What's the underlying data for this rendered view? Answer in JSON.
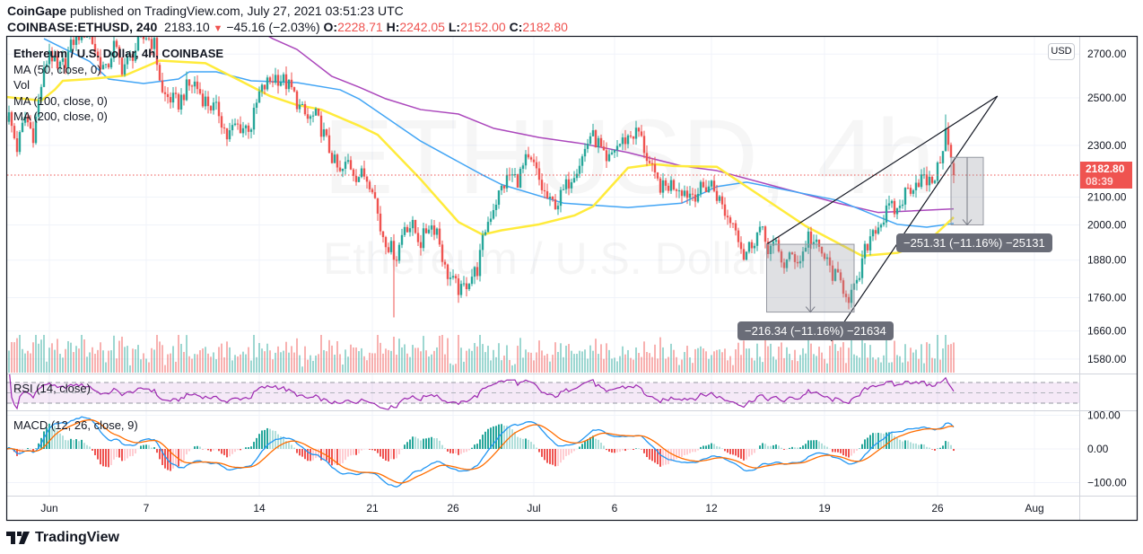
{
  "header": {
    "publisher": "CoinGape",
    "published_text": "published on TradingView.com, July 27, 2021 03:51:23 UTC",
    "symbol": "COINBASE:ETHUSD, 240",
    "last": "2183.10",
    "change": "−45.16 (−2.03%)",
    "direction": "down",
    "o_label": "O:",
    "o": "2228.71",
    "h_label": "H:",
    "h": "2242.05",
    "l_label": "L:",
    "l": "2152.00",
    "c_label": "C:",
    "c": "2182.80"
  },
  "legend": {
    "title": "Ethereum / U.S. Dollar, 4h, COINBASE",
    "ma50": "MA (50, close, 0)",
    "vol": "Vol",
    "ma100": "MA (100, close, 0)",
    "ma200": "MA (200, close, 0)"
  },
  "watermark": {
    "line1": "ETHUSD, 4h",
    "line2": "Ethereum / U.S. Dollar"
  },
  "indicators": {
    "rsi": "RSI (14, close)",
    "macd": "MACD (12, 26, close, 9)"
  },
  "price_axis": {
    "currency": "USD",
    "ticks": [
      "2700.00",
      "2500.00",
      "2300.00",
      "2100.00",
      "2000.00",
      "1880.00",
      "1760.00",
      "1660.00",
      "1580.00"
    ],
    "last_price": "2182.80",
    "countdown": "08:39"
  },
  "macd_axis": {
    "ticks": [
      "100.00",
      "0.00",
      "−100.00"
    ]
  },
  "time_axis": {
    "ticks": [
      "Jun",
      "7",
      "14",
      "21",
      "26",
      "Jul",
      "6",
      "12",
      "19",
      "26",
      "Aug"
    ]
  },
  "drawings": {
    "measure1": {
      "label": "−216.34 (−11.16%) −21634",
      "from": [
        "07-15 10:00",
        1933
      ],
      "to": [
        "07-20 20:00",
        1716
      ]
    },
    "measure2": {
      "label": "−251.31 (−11.16%) −25131",
      "from": [
        "07-26 20:00",
        2252
      ],
      "to": [
        "07-28 20:00",
        2000
      ]
    },
    "wedge_upper": [
      [
        "07-15 10:00",
        1933
      ],
      [
        "07-29 17:00",
        2508
      ]
    ],
    "wedge_lower": [
      [
        "07-19 10:00",
        1631
      ],
      [
        "07-29 17:00",
        2508
      ]
    ]
  },
  "colors": {
    "up": "#26a69a",
    "down": "#ef5350",
    "ma50": "#ffeb3b",
    "ma100": "#42a5f5",
    "ma200": "#ab47bc",
    "rsi": "#9c27b0",
    "macd": "#2196f3",
    "signal": "#ff6d00"
  },
  "brand": "TradingView",
  "chart_data": {
    "type": "candlestick",
    "scale": "log",
    "timeframe": "4h",
    "ylim": [
      1560,
      2800
    ],
    "last_candle": {
      "o": 2228.71,
      "h": 2242.05,
      "l": 2152.0,
      "c": 2182.8
    },
    "close_path": [
      [
        "05-29 12:00",
        2420
      ],
      [
        "05-30 00:00",
        2289
      ],
      [
        "05-30 12:00",
        2419
      ],
      [
        "05-31 00:00",
        2343
      ],
      [
        "05-31 12:00",
        2556
      ],
      [
        "06-01 00:00",
        2722
      ],
      [
        "06-01 12:00",
        2617
      ],
      [
        "06-02 00:00",
        2670
      ],
      [
        "06-02 12:00",
        2766
      ],
      [
        "06-03 00:00",
        2810
      ],
      [
        "06-03 12:00",
        2800
      ],
      [
        "06-04 00:00",
        2680
      ],
      [
        "06-04 12:00",
        2617
      ],
      [
        "06-05 00:00",
        2740
      ],
      [
        "06-05 12:00",
        2638
      ],
      [
        "06-06 00:00",
        2680
      ],
      [
        "06-06 12:00",
        2744
      ],
      [
        "06-07 00:00",
        2788
      ],
      [
        "06-07 12:00",
        2744
      ],
      [
        "06-08 00:00",
        2516
      ],
      [
        "06-08 12:00",
        2496
      ],
      [
        "06-09 00:00",
        2476
      ],
      [
        "06-09 12:00",
        2545
      ],
      [
        "06-10 00:00",
        2565
      ],
      [
        "06-10 12:00",
        2500
      ],
      [
        "06-11 00:00",
        2465
      ],
      [
        "06-11 12:00",
        2438
      ],
      [
        "06-12 00:00",
        2333
      ],
      [
        "06-12 12:00",
        2381
      ],
      [
        "06-13 00:00",
        2373
      ],
      [
        "06-13 12:00",
        2381
      ],
      [
        "06-14 00:00",
        2516
      ],
      [
        "06-14 12:00",
        2565
      ],
      [
        "06-15 00:00",
        2596
      ],
      [
        "06-15 12:00",
        2576
      ],
      [
        "06-16 00:00",
        2536
      ],
      [
        "06-16 12:00",
        2457
      ],
      [
        "06-17 00:00",
        2407
      ],
      [
        "06-17 12:00",
        2419
      ],
      [
        "06-18 00:00",
        2343
      ],
      [
        "06-18 12:00",
        2253
      ],
      [
        "06-19 00:00",
        2183
      ],
      [
        "06-19 12:00",
        2235
      ],
      [
        "06-20 00:00",
        2183
      ],
      [
        "06-20 12:00",
        2183
      ],
      [
        "06-21 00:00",
        2149
      ],
      [
        "06-21 12:00",
        1986
      ],
      [
        "06-22 00:00",
        1930
      ],
      [
        "06-22 12:00",
        1894
      ],
      [
        "06-23 00:00",
        2002
      ],
      [
        "06-23 12:00",
        1992
      ],
      [
        "06-24 00:00",
        1939
      ],
      [
        "06-24 12:00",
        2002
      ],
      [
        "06-25 00:00",
        1986
      ],
      [
        "06-25 12:00",
        1850
      ],
      [
        "06-26 00:00",
        1807
      ],
      [
        "06-26 12:00",
        1778
      ],
      [
        "06-27 00:00",
        1821
      ],
      [
        "06-27 12:00",
        1850
      ],
      [
        "06-28 00:00",
        1986
      ],
      [
        "06-28 12:00",
        2066
      ],
      [
        "06-29 00:00",
        2132
      ],
      [
        "06-29 12:00",
        2183
      ],
      [
        "06-30 00:00",
        2166
      ],
      [
        "06-30 12:00",
        2235
      ],
      [
        "07-01 00:00",
        2218
      ],
      [
        "07-01 12:00",
        2132
      ],
      [
        "07-02 00:00",
        2076
      ],
      [
        "07-02 12:00",
        2082
      ],
      [
        "07-03 00:00",
        2140
      ],
      [
        "07-03 12:00",
        2200
      ],
      [
        "07-04 00:00",
        2253
      ],
      [
        "07-04 12:00",
        2343
      ],
      [
        "07-05 00:00",
        2307
      ],
      [
        "07-05 12:00",
        2218
      ],
      [
        "07-06 00:00",
        2289
      ],
      [
        "07-06 12:00",
        2315
      ],
      [
        "07-07 00:00",
        2343
      ],
      [
        "07-07 12:00",
        2354
      ],
      [
        "07-08 00:00",
        2253
      ],
      [
        "07-08 12:00",
        2166
      ],
      [
        "07-09 00:00",
        2132
      ],
      [
        "07-09 12:00",
        2149
      ],
      [
        "07-10 00:00",
        2140
      ],
      [
        "07-10 12:00",
        2115
      ],
      [
        "07-11 00:00",
        2115
      ],
      [
        "07-11 12:00",
        2132
      ],
      [
        "07-12 00:00",
        2149
      ],
      [
        "07-12 12:00",
        2088
      ],
      [
        "07-13 00:00",
        2025
      ],
      [
        "07-13 12:00",
        2002
      ],
      [
        "07-14 00:00",
        1894
      ],
      [
        "07-14 12:00",
        1939
      ],
      [
        "07-15 00:00",
        1986
      ],
      [
        "07-15 12:00",
        1924
      ],
      [
        "07-16 00:00",
        1924
      ],
      [
        "07-16 12:00",
        1864
      ],
      [
        "07-17 00:00",
        1894
      ],
      [
        "07-17 12:00",
        1879
      ],
      [
        "07-18 00:00",
        1964
      ],
      [
        "07-18 12:00",
        1924
      ],
      [
        "07-19 00:00",
        1888
      ],
      [
        "07-19 12:00",
        1835
      ],
      [
        "07-20 00:00",
        1807
      ],
      [
        "07-20 12:00",
        1764
      ],
      [
        "07-21 00:00",
        1792
      ],
      [
        "07-21 12:00",
        1909
      ],
      [
        "07-22 00:00",
        1986
      ],
      [
        "07-22 12:00",
        2008
      ],
      [
        "07-23 00:00",
        2060
      ],
      [
        "07-23 12:00",
        2049
      ],
      [
        "07-24 00:00",
        2115
      ],
      [
        "07-24 12:00",
        2149
      ],
      [
        "07-25 00:00",
        2172
      ],
      [
        "07-25 12:00",
        2149
      ],
      [
        "07-26 00:00",
        2200
      ],
      [
        "07-26 12:00",
        2354
      ],
      [
        "07-27 00:00",
        2183
      ]
    ],
    "notable_wicks": [
      [
        "06-22 08:00",
        "low",
        1700
      ],
      [
        "07-26 12:00",
        "high",
        2428
      ]
    ],
    "ma50": [
      [
        "05-29 08:00",
        2504
      ],
      [
        "05-31 12:00",
        2488
      ],
      [
        "06-01 08:00",
        2536
      ],
      [
        "06-01 20:00",
        2576
      ],
      [
        "06-03 12:00",
        2584
      ],
      [
        "06-05 16:00",
        2600
      ],
      [
        "06-07 20:00",
        2669
      ],
      [
        "06-10 16:00",
        2657
      ],
      [
        "06-12 20:00",
        2576
      ],
      [
        "06-14 16:00",
        2508
      ],
      [
        "06-16 08:00",
        2469
      ],
      [
        "06-17 20:00",
        2449
      ],
      [
        "06-20 04:00",
        2381
      ],
      [
        "06-21 08:00",
        2343
      ],
      [
        "06-24 00:00",
        2166
      ],
      [
        "06-26 08:00",
        2010
      ],
      [
        "06-27 20:00",
        1966
      ],
      [
        "06-29 00:00",
        1981
      ],
      [
        "07-01 08:00",
        2002
      ],
      [
        "07-03 12:00",
        2033
      ],
      [
        "07-04 16:00",
        2066
      ],
      [
        "07-06 20:00",
        2211
      ],
      [
        "07-08 12:00",
        2225
      ],
      [
        "07-09 16:00",
        2218
      ],
      [
        "07-12 08:00",
        2215
      ],
      [
        "07-17 20:00",
        1996
      ],
      [
        "07-21 08:00",
        1894
      ],
      [
        "07-23 12:00",
        1904
      ],
      [
        "07-25 08:00",
        1939
      ],
      [
        "07-27 00:00",
        2027
      ]
    ],
    "ma100": [
      [
        "05-31 16:00",
        2774
      ],
      [
        "06-03 12:00",
        2665
      ],
      [
        "06-04 16:00",
        2584
      ],
      [
        "06-06 20:00",
        2564
      ],
      [
        "06-09 00:00",
        2584
      ],
      [
        "06-09 16:00",
        2617
      ],
      [
        "06-11 08:00",
        2617
      ],
      [
        "06-13 12:00",
        2576
      ],
      [
        "06-16 08:00",
        2568
      ],
      [
        "06-19 00:00",
        2536
      ],
      [
        "06-20 04:00",
        2496
      ],
      [
        "06-24 00:00",
        2317
      ],
      [
        "06-27 20:00",
        2183
      ],
      [
        "06-29 00:00",
        2147
      ],
      [
        "07-02 20:00",
        2078
      ],
      [
        "07-06 20:00",
        2062
      ],
      [
        "07-10 04:00",
        2078
      ],
      [
        "07-12 08:00",
        2139
      ],
      [
        "07-14 04:00",
        2156
      ],
      [
        "07-19 20:00",
        2088
      ],
      [
        "07-23 12:00",
        2002
      ],
      [
        "07-25 08:00",
        1992
      ],
      [
        "07-27 00:00",
        2005
      ]
    ],
    "ma200": [
      [
        "06-13 00:00",
        2860
      ],
      [
        "06-14 20:00",
        2774
      ],
      [
        "06-16 08:00",
        2722
      ],
      [
        "06-18 12:00",
        2596
      ],
      [
        "06-20 04:00",
        2548
      ],
      [
        "06-21 20:00",
        2496
      ],
      [
        "06-24 00:00",
        2449
      ],
      [
        "06-26 08:00",
        2430
      ],
      [
        "06-28 12:00",
        2370
      ],
      [
        "07-01 08:00",
        2332
      ],
      [
        "07-04 00:00",
        2307
      ],
      [
        "07-06 20:00",
        2271
      ],
      [
        "07-10 04:00",
        2218
      ],
      [
        "07-12 08:00",
        2200
      ],
      [
        "07-19 20:00",
        2078
      ],
      [
        "07-22 08:00",
        2044
      ],
      [
        "07-27 00:00",
        2057
      ]
    ],
    "rsi_bands": [
      70,
      30
    ],
    "macd_range": [
      -100,
      100
    ]
  }
}
